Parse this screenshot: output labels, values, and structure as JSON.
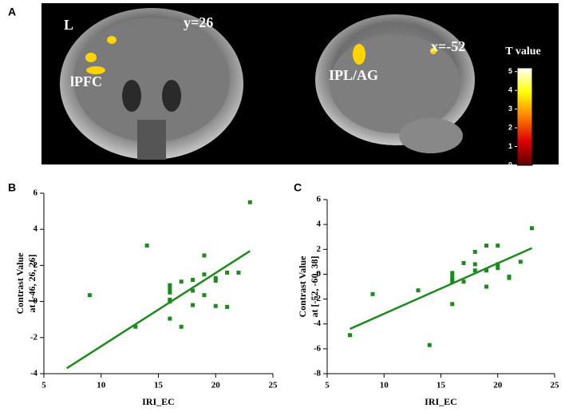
{
  "figure": {
    "panel_labels": [
      "A",
      "B",
      "C"
    ]
  },
  "brain_images": [
    {
      "hemisphere_label": "L",
      "slice": "y=26",
      "region": "lPFC"
    },
    {
      "slice": "x=-52",
      "region": "IPL/AG"
    }
  ],
  "chart_data": [
    {
      "type": "colorbar",
      "title": "T value",
      "colors": [
        "#5a0000",
        "#e00000",
        "#ff8000",
        "#ffff00",
        "#ffffff"
      ],
      "ylim": [
        0,
        5.2
      ],
      "yticks": [
        0,
        1,
        2,
        3,
        4,
        5
      ]
    },
    {
      "type": "scatter",
      "xlabel": "IRI_EC",
      "ylabel": [
        "Contrast Value",
        "at [-46, 26, 26]"
      ],
      "color": "#1e8a1e",
      "x": [
        9,
        13,
        14,
        16,
        16,
        16,
        16,
        16,
        16,
        17,
        17,
        18,
        18,
        18,
        19,
        19,
        19,
        20,
        20,
        20,
        21,
        21,
        22,
        23
      ],
      "y": [
        0.35,
        -1.4,
        3.1,
        0.9,
        0.7,
        0.5,
        0.1,
        0.0,
        -0.95,
        1.1,
        -1.4,
        1.2,
        0.6,
        -0.2,
        2.55,
        1.5,
        0.35,
        1.3,
        1.15,
        -0.25,
        1.6,
        -0.3,
        1.6,
        5.5
      ],
      "fit_line": {
        "x": [
          7,
          23
        ],
        "y": [
          -3.7,
          2.8
        ]
      },
      "xlim": [
        5,
        25
      ],
      "xticks": [
        5,
        10,
        15,
        20,
        25
      ],
      "ylim": [
        -4,
        6
      ],
      "yticks": [
        -4,
        -2,
        0,
        2,
        4,
        6
      ]
    },
    {
      "type": "scatter",
      "xlabel": "IRI_EC",
      "ylabel": [
        "Contrast Value",
        "at [-52, -60, 38]"
      ],
      "color": "#1e8a1e",
      "x": [
        7,
        9,
        13,
        14,
        16,
        16,
        16,
        16,
        16,
        17,
        17,
        18,
        18,
        18,
        19,
        19,
        19,
        20,
        20,
        20,
        21,
        21,
        22,
        23
      ],
      "y": [
        -4.9,
        -1.6,
        -1.3,
        -5.7,
        -2.4,
        0.1,
        -0.2,
        -0.4,
        -0.6,
        0.9,
        -0.6,
        1.8,
        0.8,
        0.3,
        2.3,
        0.3,
        -1.0,
        2.3,
        0.8,
        0.5,
        -0.2,
        -0.3,
        1.0,
        3.7
      ],
      "fit_line": {
        "x": [
          7,
          23
        ],
        "y": [
          -4.4,
          2.1
        ]
      },
      "xlim": [
        5,
        25
      ],
      "xticks": [
        5,
        10,
        15,
        20,
        25
      ],
      "ylim": [
        -8,
        6
      ],
      "yticks": [
        -8,
        -6,
        -4,
        -2,
        0,
        2,
        4,
        6
      ]
    }
  ]
}
